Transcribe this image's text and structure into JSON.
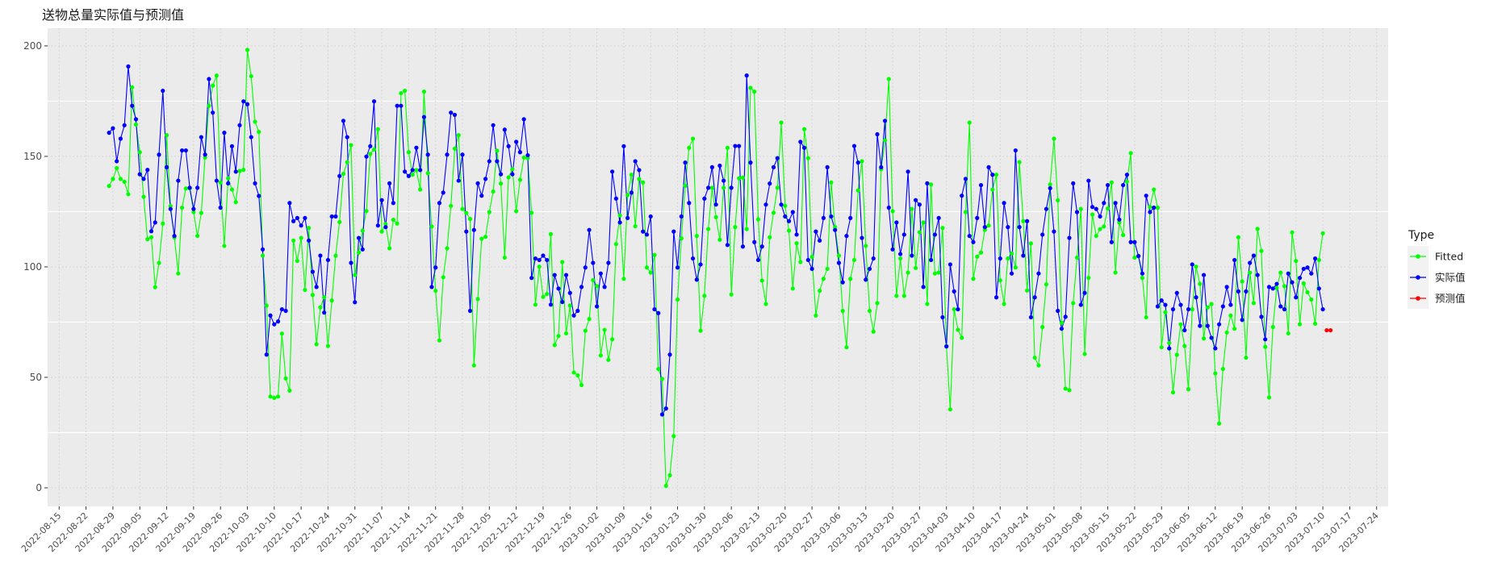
{
  "chart_data": {
    "type": "line",
    "title": "送物总量实际值与预测值",
    "xlabel": "",
    "ylabel": "",
    "ylim": [
      -8.4,
      208
    ],
    "xlim": [
      "2022-08-12",
      "2023-07-27"
    ],
    "y_ticks": [
      0,
      50,
      100,
      150,
      200
    ],
    "x_ticks": [
      "2022-08-15",
      "2022-08-22",
      "2022-08-29",
      "2022-09-05",
      "2022-09-12",
      "2022-09-19",
      "2022-09-26",
      "2022-10-03",
      "2022-10-10",
      "2022-10-17",
      "2022-10-24",
      "2022-10-31",
      "2022-11-07",
      "2022-11-14",
      "2022-11-21",
      "2022-11-28",
      "2022-12-05",
      "2022-12-12",
      "2022-12-19",
      "2022-12-26",
      "2023-01-02",
      "2023-01-09",
      "2023-01-16",
      "2023-01-23",
      "2023-01-30",
      "2023-02-06",
      "2023-02-13",
      "2023-02-20",
      "2023-02-27",
      "2023-03-06",
      "2023-03-13",
      "2023-03-20",
      "2023-03-27",
      "2023-04-03",
      "2023-04-10",
      "2023-04-17",
      "2023-04-24",
      "2023-05-01",
      "2023-05-08",
      "2023-05-15",
      "2023-05-22",
      "2023-05-29",
      "2023-06-05",
      "2023-06-12",
      "2023-06-19",
      "2023-06-26",
      "2023-07-03",
      "2023-07-10",
      "2023-07-17",
      "2023-07-24"
    ],
    "grid": true,
    "background": "#EBEBEB",
    "legend": {
      "title": "Type",
      "placement": "right"
    },
    "x": [
      "2022-08-28",
      "2022-08-29",
      "2022-08-30",
      "2022-08-31",
      "2022-09-01",
      "2022-09-02",
      "2022-09-03",
      "2022-09-04",
      "2022-09-05",
      "2022-09-06",
      "2022-09-07",
      "2022-09-08",
      "2022-09-09",
      "2022-09-10",
      "2022-09-11",
      "2022-09-12",
      "2022-09-13",
      "2022-09-14",
      "2022-09-15",
      "2022-09-16",
      "2022-09-17",
      "2022-09-18",
      "2022-09-19",
      "2022-09-20",
      "2022-09-21",
      "2022-09-22",
      "2022-09-23",
      "2022-09-24",
      "2022-09-25",
      "2022-09-26",
      "2022-09-27",
      "2022-09-28",
      "2022-09-29",
      "2022-09-30",
      "2022-10-01",
      "2022-10-02",
      "2022-10-03",
      "2022-10-04",
      "2022-10-05",
      "2022-10-06",
      "2022-10-07",
      "2022-10-08",
      "2022-10-09",
      "2022-10-10",
      "2022-10-11",
      "2022-10-12",
      "2022-10-13",
      "2022-10-14",
      "2022-10-15",
      "2022-10-16",
      "2022-10-17",
      "2022-10-18",
      "2022-10-19",
      "2022-10-20",
      "2022-10-21",
      "2022-10-22",
      "2022-10-23",
      "2022-10-24",
      "2022-10-25",
      "2022-10-26",
      "2022-10-27",
      "2022-10-28",
      "2022-10-29",
      "2022-10-30",
      "2022-10-31",
      "2022-11-01",
      "2022-11-02",
      "2022-11-03",
      "2022-11-04",
      "2022-11-05",
      "2022-11-06",
      "2022-11-07",
      "2022-11-08",
      "2022-11-09",
      "2022-11-10",
      "2022-11-11",
      "2022-11-12",
      "2022-11-13",
      "2022-11-14",
      "2022-11-15",
      "2022-11-16",
      "2022-11-17",
      "2022-11-18",
      "2022-11-19",
      "2022-11-20",
      "2022-11-21",
      "2022-11-22",
      "2022-11-23",
      "2022-11-24",
      "2022-11-25",
      "2022-11-26",
      "2022-11-27",
      "2022-11-28",
      "2022-11-29",
      "2022-11-30",
      "2022-12-01",
      "2022-12-02",
      "2022-12-03",
      "2022-12-04",
      "2022-12-05",
      "2022-12-06",
      "2022-12-07",
      "2022-12-08",
      "2022-12-09",
      "2022-12-10",
      "2022-12-11",
      "2022-12-12",
      "2022-12-13",
      "2022-12-14",
      "2022-12-15",
      "2022-12-16",
      "2022-12-17",
      "2022-12-18",
      "2022-12-19",
      "2022-12-20",
      "2022-12-21",
      "2022-12-22",
      "2022-12-23",
      "2022-12-24",
      "2022-12-25",
      "2022-12-26",
      "2022-12-27",
      "2022-12-28",
      "2022-12-29",
      "2022-12-30",
      "2022-12-31",
      "2023-01-01",
      "2023-01-02",
      "2023-01-03",
      "2023-01-04",
      "2023-01-05",
      "2023-01-06",
      "2023-01-07",
      "2023-01-08",
      "2023-01-09",
      "2023-01-10",
      "2023-01-11",
      "2023-01-12",
      "2023-01-13",
      "2023-01-14",
      "2023-01-15",
      "2023-01-16",
      "2023-01-17",
      "2023-01-18",
      "2023-01-19",
      "2023-01-20",
      "2023-01-21",
      "2023-01-22",
      "2023-01-23",
      "2023-01-24",
      "2023-01-25",
      "2023-01-26",
      "2023-01-27",
      "2023-01-28",
      "2023-01-29",
      "2023-01-30",
      "2023-01-31",
      "2023-02-01",
      "2023-02-02",
      "2023-02-03",
      "2023-02-04",
      "2023-02-05",
      "2023-02-06",
      "2023-02-07",
      "2023-02-08",
      "2023-02-09",
      "2023-02-10",
      "2023-02-11",
      "2023-02-12",
      "2023-02-13",
      "2023-02-14",
      "2023-02-15",
      "2023-02-16",
      "2023-02-17",
      "2023-02-18",
      "2023-02-19",
      "2023-02-20",
      "2023-02-21",
      "2023-02-22",
      "2023-02-23",
      "2023-02-24",
      "2023-02-25",
      "2023-02-26",
      "2023-02-27",
      "2023-02-28",
      "2023-03-01",
      "2023-03-02",
      "2023-03-03",
      "2023-03-04",
      "2023-03-05",
      "2023-03-06",
      "2023-03-07",
      "2023-03-08",
      "2023-03-09",
      "2023-03-10",
      "2023-03-11",
      "2023-03-12",
      "2023-03-13",
      "2023-03-14",
      "2023-03-15",
      "2023-03-16",
      "2023-03-17",
      "2023-03-18",
      "2023-03-19",
      "2023-03-20",
      "2023-03-21",
      "2023-03-22",
      "2023-03-23",
      "2023-03-24",
      "2023-03-25",
      "2023-03-26",
      "2023-03-27",
      "2023-03-28",
      "2023-03-29",
      "2023-03-30",
      "2023-03-31",
      "2023-04-01",
      "2023-04-02",
      "2023-04-03",
      "2023-04-04",
      "2023-04-05",
      "2023-04-06",
      "2023-04-07",
      "2023-04-08",
      "2023-04-09",
      "2023-04-10",
      "2023-04-11",
      "2023-04-12",
      "2023-04-13",
      "2023-04-14",
      "2023-04-15",
      "2023-04-16",
      "2023-04-17",
      "2023-04-18",
      "2023-04-19",
      "2023-04-20",
      "2023-04-21",
      "2023-04-22",
      "2023-04-23",
      "2023-04-24",
      "2023-04-25",
      "2023-04-26",
      "2023-04-27",
      "2023-04-28",
      "2023-04-29",
      "2023-04-30",
      "2023-05-01",
      "2023-05-02",
      "2023-05-03",
      "2023-05-04",
      "2023-05-05",
      "2023-05-06",
      "2023-05-07",
      "2023-05-08",
      "2023-05-09",
      "2023-05-10",
      "2023-05-11",
      "2023-05-12",
      "2023-05-13",
      "2023-05-14",
      "2023-05-15",
      "2023-05-16",
      "2023-05-17",
      "2023-05-18",
      "2023-05-19",
      "2023-05-20",
      "2023-05-21",
      "2023-05-22",
      "2023-05-23",
      "2023-05-24",
      "2023-05-25",
      "2023-05-26",
      "2023-05-27",
      "2023-05-28",
      "2023-05-29",
      "2023-05-30",
      "2023-05-31",
      "2023-06-01",
      "2023-06-02",
      "2023-06-03",
      "2023-06-04",
      "2023-06-05",
      "2023-06-06",
      "2023-06-07",
      "2023-06-08",
      "2023-06-09",
      "2023-06-10",
      "2023-06-11",
      "2023-06-12",
      "2023-06-13",
      "2023-06-14",
      "2023-06-15",
      "2023-06-16",
      "2023-06-17",
      "2023-06-18",
      "2023-06-19",
      "2023-06-20",
      "2023-06-21",
      "2023-06-22",
      "2023-06-23",
      "2023-06-24",
      "2023-06-25",
      "2023-06-26",
      "2023-06-27",
      "2023-06-28",
      "2023-06-29",
      "2023-06-30",
      "2023-07-01",
      "2023-07-02",
      "2023-07-03",
      "2023-07-04",
      "2023-07-05",
      "2023-07-06",
      "2023-07-07",
      "2023-07-08",
      "2023-07-09",
      "2023-07-10"
    ],
    "series": [
      {
        "name": "Fitted",
        "color": "#00FF00",
        "values": [
          136.6,
          139.8,
          144.7,
          139.8,
          138.5,
          132.9,
          181.3,
          164.4,
          151.9,
          131.7,
          112.5,
          113.4,
          90.8,
          101.8,
          119.6,
          159.6,
          127.5,
          113.3,
          97,
          126.8,
          135.5,
          135.5,
          124.8,
          114,
          124.4,
          149.5,
          172.9,
          182,
          186.6,
          138.2,
          109.5,
          140.1,
          135,
          129.3,
          143.4,
          143.9,
          198.2,
          186.3,
          165.7,
          161.1,
          105.1,
          82.5,
          41.3,
          40.7,
          41.3,
          69.8,
          49.5,
          44,
          111.9,
          102.7,
          113.1,
          89.6,
          117.6,
          87.3,
          65,
          81.7,
          86.2,
          64.2,
          84.8,
          105.1,
          120.3,
          142.1,
          147.4,
          155.1,
          96.3,
          106.5,
          116.4,
          125.3,
          151.1,
          153.1,
          162.3,
          116,
          119.4,
          108.4,
          121.3,
          119.6,
          178.6,
          179.7,
          151.9,
          141.7,
          143.8,
          135,
          179.3,
          142.4,
          118.3,
          89.2,
          66.7,
          95.3,
          108.4,
          127.6,
          153.5,
          159.6,
          126.2,
          124.4,
          121.7,
          55.4,
          85.4,
          112.7,
          113.6,
          124.8,
          134.1,
          152.6,
          137.7,
          104.2,
          140.5,
          144.2,
          125.2,
          139.4,
          149.5,
          149.2,
          124.5,
          82.9,
          100.1,
          86.4,
          87.7,
          114.8,
          64.6,
          68.7,
          102.2,
          69.9,
          82.5,
          52.2,
          50.9,
          46.5,
          71.1,
          76.4,
          94,
          91.3,
          59.9,
          71.5,
          57.9,
          67.2,
          110.3,
          123.3,
          94.6,
          132.5,
          141.7,
          118.4,
          139.8,
          138.2,
          99.7,
          97.4,
          105.4,
          53.8,
          49.3,
          0.9,
          5.7,
          23.4,
          85.2,
          112.9,
          136.7,
          153.9,
          158,
          114,
          71.1,
          86.9,
          117.1,
          135.8,
          122.5,
          112.3,
          135.8,
          153.9,
          87.5,
          118,
          140.1,
          140.4,
          117.1,
          181,
          179.3,
          121.5,
          93.8,
          83.2,
          113.4,
          124.5,
          135.8,
          165.3,
          127.6,
          116.4,
          90.2,
          110.7,
          102.2,
          162.3,
          149.2,
          104.5,
          78,
          89.2,
          94.6,
          99.1,
          138.2,
          118,
          105.1,
          80.1,
          63.6,
          94.6,
          103.1,
          134.6,
          147.8,
          109.5,
          80.1,
          70.7,
          83.6,
          144.2,
          157.2,
          185,
          125.2,
          86.9,
          103.8,
          86.9,
          97.4,
          126.2,
          99.5,
          115.7,
          120.1,
          83.2,
          137.3,
          97,
          97.4,
          117.6,
          64.2,
          35.5,
          80.8,
          71.5,
          67.9,
          124.8,
          165.3,
          94.6,
          104.6,
          106.5,
          116.7,
          118.7,
          135,
          141.7,
          93.9,
          83.2,
          103.8,
          106.1,
          99.7,
          147.4,
          120.7,
          89.3,
          110.6,
          58.9,
          55.4,
          72.8,
          92.1,
          137.3,
          158,
          130.1,
          74.7,
          44.9,
          44.2,
          83.6,
          104.2,
          126.2,
          60.6,
          95,
          123.7,
          114,
          117.1,
          118.3,
          126.4,
          138.2,
          97.4,
          120.1,
          114.4,
          138.6,
          151.5,
          104.2,
          104.9,
          95,
          77.2,
          127.1,
          135,
          126.8,
          63.6,
          79.5,
          65.6,
          43.2,
          60.2,
          74,
          64.2,
          44.6,
          80.8,
          100.1,
          92.3,
          67.6,
          81.7,
          83.2,
          51.8,
          29.1,
          53.8,
          70.3,
          78,
          72,
          113.4,
          93.4,
          58.9,
          97.4,
          83.6,
          117.2,
          107.2,
          63.8,
          40.9,
          72.8,
          90.5,
          97.4,
          91.3,
          69.9,
          115.6,
          102.7,
          74,
          92.5,
          88.5,
          85.2,
          74.3,
          103.1,
          115.2
        ]
      },
      {
        "name": "实际值",
        "color": "#0000FF",
        "values": [
          160.7,
          162.7,
          147.8,
          158,
          164.1,
          190.7,
          172.9,
          166.8,
          141.9,
          139.8,
          143.9,
          116.1,
          120.1,
          150.8,
          179.7,
          145.1,
          126.2,
          114,
          139,
          152.7,
          152.7,
          135.8,
          126.2,
          135.8,
          158.7,
          150.8,
          185,
          169.8,
          139,
          126.8,
          160.7,
          137.8,
          154.6,
          143.1,
          164.1,
          174.9,
          173.6,
          158.7,
          137.8,
          132.1,
          107.9,
          60.3,
          78,
          74,
          75.3,
          80.8,
          80.1,
          128.9,
          120.7,
          122.1,
          118.7,
          122.1,
          111.9,
          97.8,
          90.9,
          105.1,
          79.3,
          103.1,
          122.8,
          122.8,
          141.1,
          166.1,
          158.7,
          101.8,
          84,
          113.1,
          107.9,
          149.9,
          154.6,
          174.9,
          118.7,
          130.2,
          118,
          137.8,
          128.9,
          172.9,
          172.9,
          143.1,
          141.1,
          143.8,
          153.9,
          143.8,
          167.8,
          150.8,
          90.9,
          99.7,
          128.9,
          133.6,
          150.8,
          169.8,
          168.8,
          139,
          150.8,
          116,
          80.1,
          116.7,
          137.8,
          132.2,
          139.8,
          147.8,
          164.1,
          147.8,
          141.9,
          162.1,
          154.6,
          141.9,
          156.6,
          151.9,
          166.8,
          150.5,
          95,
          103.8,
          103.1,
          105.1,
          103.1,
          82.9,
          96.3,
          90.2,
          84.1,
          96.3,
          88.2,
          78,
          80.1,
          90.9,
          99.7,
          116.7,
          101.8,
          82.1,
          97,
          90.9,
          101.8,
          143.1,
          130.9,
          120.1,
          154.6,
          122.1,
          133.6,
          147.8,
          143.8,
          116,
          114.6,
          122.8,
          80.8,
          79.1,
          33.2,
          35.9,
          60.3,
          116,
          99.7,
          122.8,
          147.2,
          128.9,
          103.8,
          94.2,
          101.1,
          130.9,
          135.8,
          145.1,
          128.2,
          145.8,
          139,
          109.9,
          135.8,
          154.7,
          154.7,
          109.2,
          186.6,
          147.2,
          111.2,
          103.1,
          109.2,
          128.2,
          137.7,
          145.1,
          149.2,
          128.2,
          122.8,
          120.7,
          124.8,
          114.6,
          156.6,
          153.9,
          103.1,
          99.1,
          116,
          111.9,
          122.1,
          145.1,
          122.8,
          116.7,
          101.8,
          93,
          114,
          122.1,
          154.7,
          147.2,
          113.1,
          94.2,
          99.1,
          103.8,
          160,
          145.1,
          166.1,
          126.8,
          107.9,
          120.1,
          105.8,
          114.6,
          143.1,
          105.1,
          130.2,
          128.2,
          90.9,
          137.8,
          103.1,
          114.6,
          122.1,
          77.2,
          64,
          101.1,
          88.9,
          80.8,
          132.2,
          139.8,
          114,
          111.2,
          122.1,
          137,
          118,
          145.1,
          141.7,
          86.2,
          103.8,
          128.9,
          118,
          97,
          152.7,
          118,
          105.1,
          120.7,
          77.2,
          86.2,
          97,
          114.6,
          126.2,
          135.6,
          116,
          80.1,
          72,
          77.4,
          113.1,
          137.8,
          124.8,
          82.8,
          88.2,
          139,
          127.1,
          126.2,
          122.8,
          128.9,
          137,
          111.2,
          128.9,
          121.4,
          137,
          141.7,
          111.2,
          111.2,
          104.9,
          97,
          132.2,
          124.8,
          126.8,
          82.1,
          84.8,
          82.8,
          63.1,
          80.8,
          88.2,
          82.8,
          71.3,
          80.8,
          101.1,
          86.2,
          73.3,
          96.3,
          73.3,
          67.9,
          63.1,
          74,
          82.1,
          90.9,
          82.8,
          103.1,
          88.9,
          76,
          88.9,
          101.8,
          105.1,
          96.3,
          77.4,
          67.2,
          90.9,
          90.2,
          92.3,
          82.1,
          80.8,
          97,
          93,
          86.2,
          95,
          99.1,
          99.7,
          97,
          103.8,
          90.2,
          80.8
        ]
      },
      {
        "name": "预测值",
        "color": "#FF0000",
        "x": [
          "2023-07-11",
          "2023-07-12"
        ],
        "values": [
          71.3,
          71.3
        ]
      }
    ]
  }
}
